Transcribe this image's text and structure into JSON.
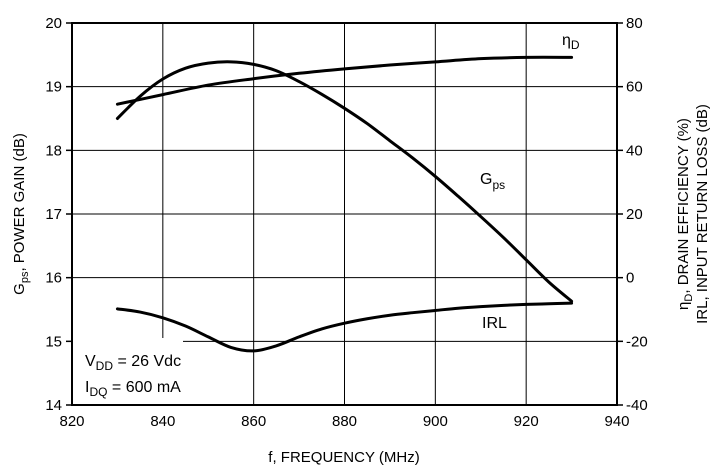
{
  "chart_data": {
    "type": "line",
    "x_axis": {
      "label": "f, FREQUENCY (MHz)",
      "range": [
        820,
        940
      ],
      "ticks": [
        "820",
        "840",
        "860",
        "880",
        "900",
        "920",
        "940"
      ]
    },
    "y_left": {
      "label_main": "G",
      "label_sub": "ps",
      "label_rest": ", POWER GAIN (dB)",
      "range": [
        14,
        20
      ],
      "ticks": [
        "14",
        "15",
        "16",
        "17",
        "18",
        "19",
        "20"
      ]
    },
    "y_right": {
      "line1_main": "η",
      "line1_sub": "D",
      "line1_rest": ", DRAIN EFFICIENCY (%)",
      "line2": "IRL,  INPUT RETURN LOSS (dB)",
      "range": [
        -40,
        80
      ],
      "ticks": [
        "-40",
        "-20",
        "0",
        "20",
        "40",
        "60",
        "80"
      ]
    },
    "grid": true,
    "series": [
      {
        "name_main": "G",
        "name_sub": "ps",
        "axis": "left",
        "x": [
          830,
          835,
          840,
          845,
          850,
          855,
          860,
          865,
          870,
          875,
          880,
          885,
          890,
          895,
          900,
          905,
          910,
          915,
          920,
          925,
          930
        ],
        "y": [
          18.5,
          18.85,
          19.12,
          19.29,
          19.37,
          19.39,
          19.35,
          19.25,
          19.08,
          18.88,
          18.66,
          18.42,
          18.15,
          17.88,
          17.59,
          17.28,
          16.96,
          16.63,
          16.28,
          15.93,
          15.63
        ]
      },
      {
        "name_main": "η",
        "name_sub": "D",
        "axis": "right",
        "x": [
          830,
          840,
          850,
          860,
          870,
          880,
          890,
          900,
          910,
          920,
          930
        ],
        "y": [
          54.5,
          57.5,
          60.5,
          62.5,
          64.2,
          65.6,
          66.8,
          67.8,
          68.8,
          69.2,
          69.2
        ]
      },
      {
        "name_main": "IRL",
        "name_sub": "",
        "axis": "right",
        "x": [
          830,
          835,
          840,
          845,
          850,
          855,
          860,
          865,
          870,
          875,
          880,
          885,
          890,
          895,
          900,
          905,
          910,
          915,
          920,
          925,
          930
        ],
        "y": [
          -9.8,
          -10.8,
          -12.6,
          -15.2,
          -18.6,
          -21.9,
          -23.0,
          -21.4,
          -18.6,
          -16.1,
          -14.3,
          -12.9,
          -11.8,
          -11.0,
          -10.3,
          -9.6,
          -9.1,
          -8.7,
          -8.4,
          -8.2,
          -8.0
        ]
      }
    ],
    "annotations": [
      {
        "main": "V",
        "sub": "DD",
        "rest": " = 26 Vdc"
      },
      {
        "main": "I",
        "sub": "DQ",
        "rest": " = 600 mA"
      }
    ]
  }
}
